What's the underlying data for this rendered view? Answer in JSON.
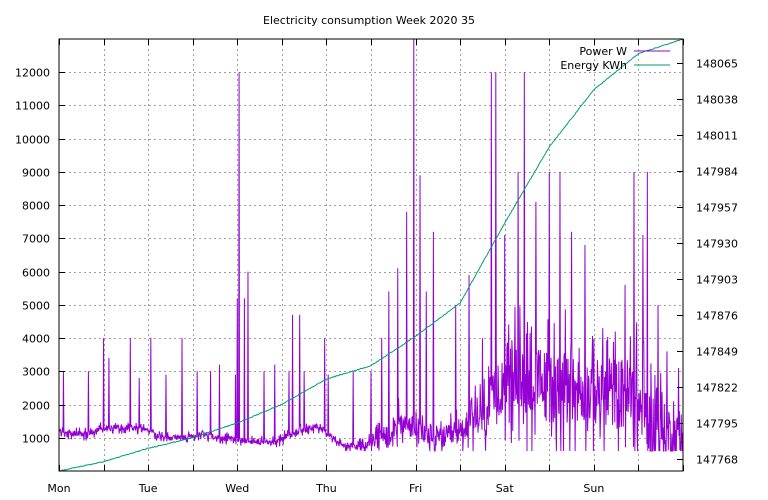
{
  "chart_data": {
    "type": "line",
    "title": "Electricity consumption Week 2020 35",
    "xlabel": "",
    "ylabel": "",
    "grid": true,
    "legend_position": "top-right",
    "x_ticks": [
      "Mon",
      "Tue",
      "Wed",
      "Thu",
      "Fri",
      "Sat",
      "Sun"
    ],
    "x_range_days": [
      0,
      7
    ],
    "y_left": {
      "ticks": [
        1000,
        2000,
        3000,
        4000,
        5000,
        6000,
        7000,
        8000,
        9000,
        10000,
        11000,
        12000
      ],
      "range": [
        0,
        13000
      ]
    },
    "y_right": {
      "ticks": [
        147768,
        147795,
        147822,
        147849,
        147876,
        147903,
        147930,
        147957,
        147984,
        148011,
        148038,
        148065
      ],
      "range": [
        147759,
        148083
      ]
    },
    "series": [
      {
        "name": "Power W",
        "axis": "left",
        "color": "#9400d3",
        "baseline": [
          [
            0.0,
            1200
          ],
          [
            0.1,
            1150
          ],
          [
            0.3,
            1100
          ],
          [
            0.5,
            1300
          ],
          [
            0.8,
            1300
          ],
          [
            1.0,
            1250
          ],
          [
            1.1,
            1050
          ],
          [
            1.4,
            1000
          ],
          [
            1.6,
            1100
          ],
          [
            1.8,
            1000
          ],
          [
            2.0,
            950
          ],
          [
            2.2,
            900
          ],
          [
            2.4,
            850
          ],
          [
            2.6,
            1100
          ],
          [
            2.9,
            1350
          ],
          [
            3.0,
            1150
          ],
          [
            3.2,
            750
          ],
          [
            3.4,
            750
          ],
          [
            3.6,
            1000
          ],
          [
            3.8,
            1400
          ],
          [
            4.0,
            1300
          ],
          [
            4.2,
            950
          ],
          [
            4.4,
            1050
          ],
          [
            4.6,
            1400
          ],
          [
            4.8,
            1700
          ],
          [
            5.0,
            2900
          ],
          [
            5.2,
            2700
          ],
          [
            5.4,
            2600
          ],
          [
            5.6,
            2500
          ],
          [
            5.8,
            2450
          ],
          [
            6.0,
            2400
          ],
          [
            6.2,
            2350
          ],
          [
            6.4,
            2300
          ],
          [
            6.6,
            1500
          ],
          [
            6.8,
            1200
          ],
          [
            7.0,
            1000
          ]
        ],
        "noise_band": [
          [
            0.0,
            200
          ],
          [
            0.9,
            200
          ],
          [
            1.0,
            150
          ],
          [
            2.0,
            200
          ],
          [
            2.4,
            200
          ],
          [
            2.6,
            250
          ],
          [
            3.2,
            150
          ],
          [
            3.5,
            400
          ],
          [
            3.8,
            800
          ],
          [
            4.2,
            700
          ],
          [
            4.6,
            900
          ],
          [
            4.8,
            1400
          ],
          [
            5.0,
            2200
          ],
          [
            5.5,
            2500
          ],
          [
            6.0,
            2200
          ],
          [
            6.5,
            2600
          ],
          [
            6.8,
            1800
          ],
          [
            7.0,
            1200
          ]
        ],
        "spikes": [
          [
            0.05,
            3000
          ],
          [
            0.33,
            3000
          ],
          [
            0.5,
            4000
          ],
          [
            0.56,
            3400
          ],
          [
            0.8,
            4000
          ],
          [
            0.9,
            2800
          ],
          [
            1.03,
            4000
          ],
          [
            1.2,
            2900
          ],
          [
            1.38,
            4000
          ],
          [
            1.55,
            3000
          ],
          [
            1.7,
            3000
          ],
          [
            1.8,
            3200
          ],
          [
            1.98,
            2900
          ],
          [
            2.0,
            5200
          ],
          [
            2.02,
            12000
          ],
          [
            2.08,
            5200
          ],
          [
            2.12,
            6000
          ],
          [
            2.3,
            3000
          ],
          [
            2.42,
            3200
          ],
          [
            2.58,
            3000
          ],
          [
            2.62,
            4700
          ],
          [
            2.7,
            4700
          ],
          [
            2.75,
            3000
          ],
          [
            2.98,
            4000
          ],
          [
            3.02,
            2900
          ],
          [
            3.3,
            3000
          ],
          [
            3.5,
            3000
          ],
          [
            3.62,
            4000
          ],
          [
            3.7,
            5400
          ],
          [
            3.8,
            6100
          ],
          [
            3.9,
            7800
          ],
          [
            3.98,
            13000
          ],
          [
            4.05,
            8900
          ],
          [
            4.12,
            5400
          ],
          [
            4.2,
            7200
          ],
          [
            4.45,
            5000
          ],
          [
            4.6,
            5900
          ],
          [
            4.75,
            4000
          ],
          [
            4.85,
            12000
          ],
          [
            4.9,
            12000
          ],
          [
            5.0,
            7100
          ],
          [
            5.15,
            9000
          ],
          [
            5.22,
            12000
          ],
          [
            5.35,
            8100
          ],
          [
            5.5,
            9000
          ],
          [
            5.62,
            9000
          ],
          [
            5.75,
            7200
          ],
          [
            5.9,
            6800
          ],
          [
            6.1,
            4300
          ],
          [
            6.35,
            5600
          ],
          [
            6.45,
            9000
          ],
          [
            6.55,
            7100
          ],
          [
            6.6,
            9000
          ],
          [
            6.72,
            5000
          ],
          [
            6.82,
            3600
          ],
          [
            6.95,
            3100
          ]
        ]
      },
      {
        "name": "Energy KWh",
        "axis": "right",
        "color": "#009e73",
        "points": [
          [
            0.0,
            147759
          ],
          [
            0.5,
            147766
          ],
          [
            1.0,
            147776
          ],
          [
            1.5,
            147784
          ],
          [
            2.0,
            147795
          ],
          [
            2.5,
            147809
          ],
          [
            3.0,
            147828
          ],
          [
            3.5,
            147838
          ],
          [
            4.0,
            147860
          ],
          [
            4.5,
            147885
          ],
          [
            5.0,
            147945
          ],
          [
            5.5,
            148002
          ],
          [
            6.0,
            148045
          ],
          [
            6.5,
            148072
          ],
          [
            7.0,
            148083
          ]
        ]
      }
    ]
  }
}
